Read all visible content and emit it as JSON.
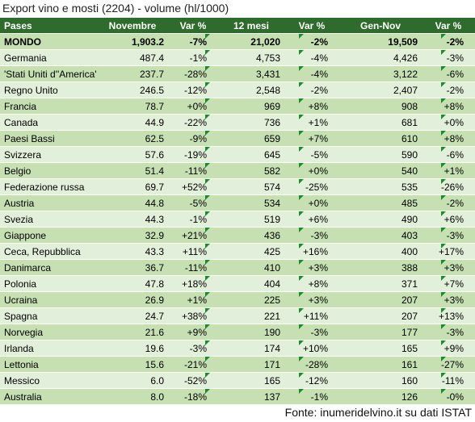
{
  "title": "Export vino e mosti (2204) - volume (hl/1000)",
  "table": {
    "header": [
      "Pases",
      "Novembre",
      "Var %",
      "12 mesi",
      "Var %",
      "Gen-Nov",
      "Var %"
    ],
    "rows": [
      [
        "MONDO",
        "1,903.2",
        "-7%",
        "21,020",
        "-2%",
        "19,509",
        "-2%"
      ],
      [
        "Germania",
        "487.4",
        "-1%",
        "4,753",
        "-4%",
        "4,426",
        "-3%"
      ],
      [
        "'Stati Uniti d''America'",
        "237.7",
        "-28%",
        "3,431",
        "-4%",
        "3,122",
        "-6%"
      ],
      [
        "Regno Unito",
        "246.5",
        "-12%",
        "2,548",
        "-2%",
        "2,407",
        "-2%"
      ],
      [
        "Francia",
        "78.7",
        "+0%",
        "969",
        "+8%",
        "908",
        "+8%"
      ],
      [
        "Canada",
        "44.9",
        "-22%",
        "736",
        "+1%",
        "681",
        "+0%"
      ],
      [
        "Paesi Bassi",
        "62.5",
        "-9%",
        "659",
        "+7%",
        "610",
        "+8%"
      ],
      [
        "Svizzera",
        "57.6",
        "-19%",
        "645",
        "-5%",
        "590",
        "-6%"
      ],
      [
        "Belgio",
        "51.4",
        "-11%",
        "582",
        "+0%",
        "540",
        "+1%"
      ],
      [
        "Federazione russa",
        "69.7",
        "+52%",
        "574",
        "-25%",
        "535",
        "-26%"
      ],
      [
        "Austria",
        "44.8",
        "-5%",
        "534",
        "+0%",
        "485",
        "-2%"
      ],
      [
        "Svezia",
        "44.3",
        "-1%",
        "519",
        "+6%",
        "490",
        "+6%"
      ],
      [
        "Giappone",
        "32.9",
        "+21%",
        "436",
        "-3%",
        "403",
        "-3%"
      ],
      [
        "Ceca, Repubblica",
        "43.3",
        "+11%",
        "425",
        "+16%",
        "400",
        "+17%"
      ],
      [
        "Danimarca",
        "36.7",
        "-11%",
        "410",
        "+3%",
        "388",
        "+3%"
      ],
      [
        "Polonia",
        "47.8",
        "+18%",
        "404",
        "+8%",
        "371",
        "+7%"
      ],
      [
        "Ucraina",
        "26.9",
        "+1%",
        "225",
        "+3%",
        "207",
        "+3%"
      ],
      [
        "Spagna",
        "24.7",
        "+38%",
        "221",
        "+11%",
        "207",
        "+13%"
      ],
      [
        "Norvegia",
        "21.6",
        "+9%",
        "190",
        "-3%",
        "177",
        "-3%"
      ],
      [
        "Irlanda",
        "19.6",
        "-3%",
        "174",
        "+10%",
        "165",
        "+9%"
      ],
      [
        "Lettonia",
        "15.6",
        "-21%",
        "171",
        "-28%",
        "161",
        "-27%"
      ],
      [
        "Messico",
        "6.0",
        "-52%",
        "165",
        "-12%",
        "160",
        "-11%"
      ],
      [
        "Australia",
        "8.0",
        "-18%",
        "137",
        "-1%",
        "126",
        "-0%"
      ]
    ]
  },
  "footer": "Fonte: inumeridelvino.it su dati ISTAT"
}
